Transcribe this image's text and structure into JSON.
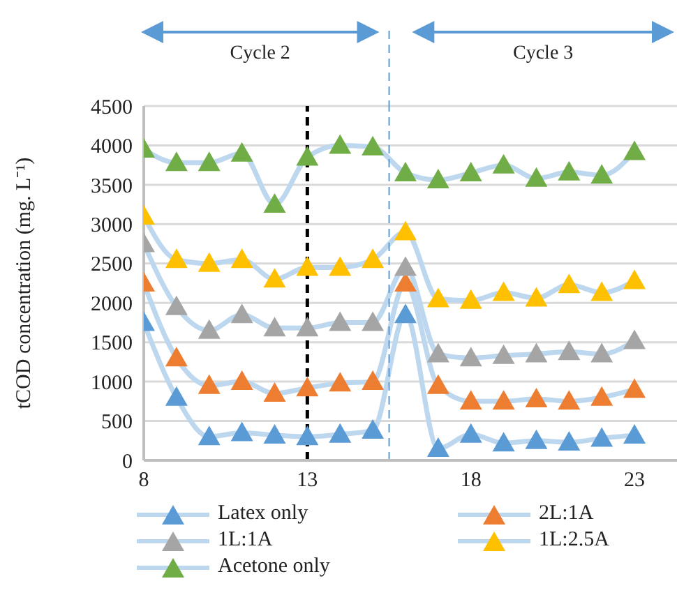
{
  "chart_data": {
    "type": "line",
    "ylabel": "tCOD concentration (mg. L⁻¹)",
    "x": [
      8,
      9,
      10,
      11,
      12,
      13,
      14,
      15,
      16,
      17,
      18,
      19,
      20,
      21,
      22,
      23
    ],
    "series": [
      {
        "name": "Latex only",
        "color": "#5b9bd5",
        "values": [
          1750,
          800,
          300,
          350,
          320,
          300,
          330,
          380,
          1850,
          150,
          330,
          220,
          250,
          230,
          280,
          320
        ]
      },
      {
        "name": "2L:1A",
        "color": "#ed7d31",
        "values": [
          2250,
          1300,
          950,
          1000,
          850,
          920,
          980,
          1000,
          2250,
          950,
          750,
          750,
          780,
          750,
          800,
          900
        ]
      },
      {
        "name": "1L:1A",
        "color": "#a5a5a5",
        "values": [
          2750,
          1950,
          1650,
          1850,
          1680,
          1680,
          1750,
          1750,
          2450,
          1350,
          1300,
          1330,
          1350,
          1380,
          1350,
          1520
        ]
      },
      {
        "name": "1L:2.5A",
        "color": "#ffc000",
        "values": [
          3100,
          2550,
          2500,
          2550,
          2300,
          2450,
          2450,
          2550,
          2900,
          2050,
          2030,
          2130,
          2060,
          2230,
          2130,
          2280
        ]
      },
      {
        "name": "Acetone only",
        "color": "#70ad47",
        "values": [
          3950,
          3780,
          3780,
          3900,
          3250,
          3850,
          4000,
          3980,
          3650,
          3560,
          3650,
          3750,
          3580,
          3660,
          3620,
          3920
        ]
      }
    ],
    "xlim": [
      8,
      24.3
    ],
    "xticks": [
      8,
      13,
      18,
      23
    ],
    "ylim": [
      0,
      4500
    ],
    "yticks": [
      0,
      500,
      1000,
      1500,
      2000,
      2500,
      3000,
      3500,
      4000,
      4500
    ],
    "ref_lines": [
      {
        "axis": "x",
        "value": 13,
        "color": "#000000",
        "line_style": "dashed"
      },
      {
        "axis": "x",
        "value": 15.5,
        "color": "#5b9bd5",
        "line_style": "dashed"
      }
    ],
    "annotations": [
      "Cycle 2",
      "Cycle 3"
    ],
    "grid": "y",
    "legend": "bottom",
    "marker": "triangle",
    "line_style": "solid"
  }
}
